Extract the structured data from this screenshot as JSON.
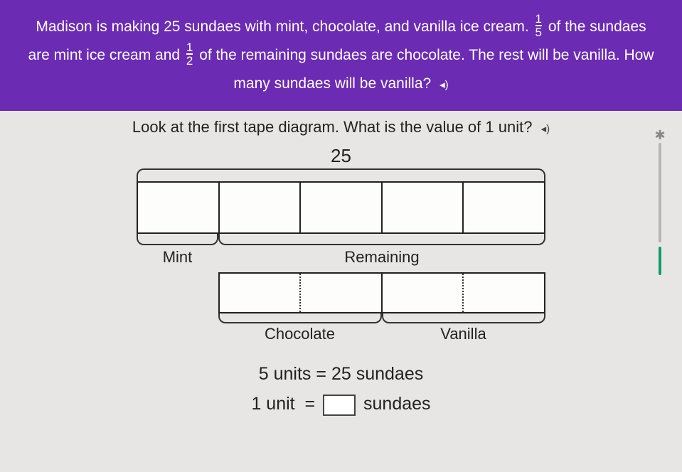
{
  "header": {
    "segments": {
      "a": "Madison is making 25 sundaes with mint, chocolate, and vanilla ice cream. ",
      "b": " of the sundaes",
      "c": "are mint ice cream and ",
      "d": " of the remaining sundaes are chocolate. The rest will be vanilla. How",
      "e": "many sundaes will be vanilla?"
    },
    "frac1": {
      "num": "1",
      "den": "5"
    },
    "frac2": {
      "num": "1",
      "den": "2"
    }
  },
  "instruction": "Look at the first tape diagram. What is the value of 1 unit?",
  "diagram": {
    "total_label": "25",
    "tape1": {
      "type": "tape",
      "cells": 5,
      "cell_border_color": "#222222",
      "background_color": "#fdfdfb"
    },
    "under1": {
      "mint_label": "Mint",
      "remaining_label": "Remaining"
    },
    "tape2": {
      "type": "tape",
      "halves": 2,
      "dotted_subdivision": true,
      "dotted_color": "#333333"
    },
    "under2": {
      "chocolate_label": "Chocolate",
      "vanilla_label": "Vanilla"
    },
    "colors": {
      "brace": "#333333",
      "text": "#222222",
      "bg": "#e8e6e4"
    }
  },
  "equations": {
    "line1_left": "5 units",
    "line1_right": "25 sundaes",
    "line2_left": "1 unit",
    "line2_right": "sundaes",
    "eq": "="
  },
  "slider": {
    "track_color": "#b8b6b4",
    "accent_color": "#119a6e",
    "star": "✱"
  }
}
